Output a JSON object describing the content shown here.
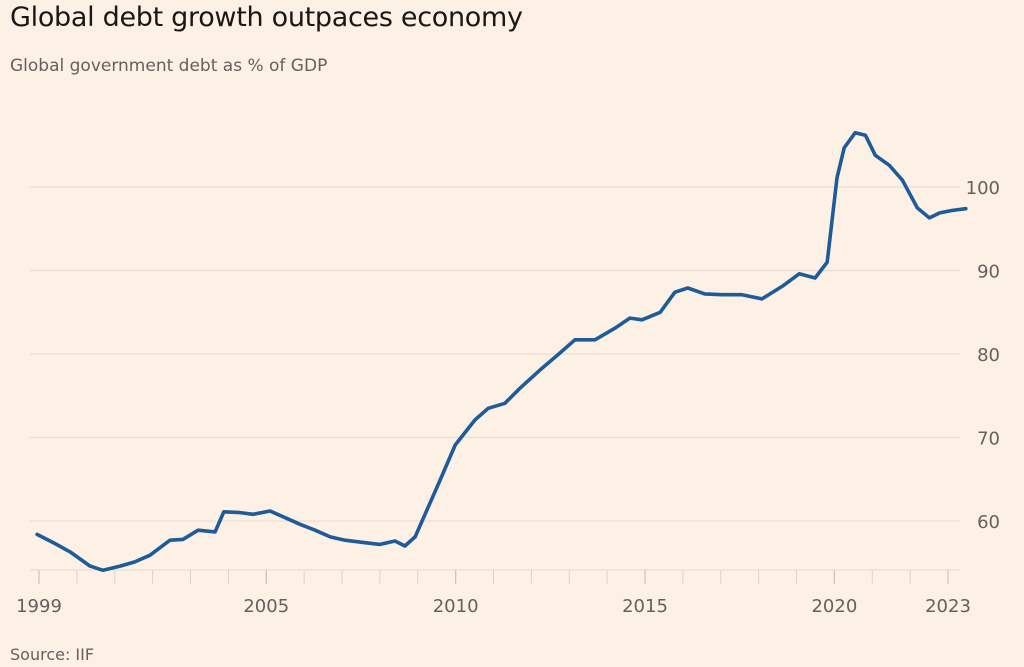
{
  "title": "Global debt growth outpaces economy",
  "subtitle": "Global government debt as % of GDP",
  "source": "Source: IIF",
  "colors": {
    "line": "#1f5b99",
    "grid": "#e9ded3",
    "background": "#fdf1e6",
    "text": "#66605c"
  },
  "chart_data": {
    "type": "line",
    "title": "Global debt growth outpaces economy",
    "subtitle": "Global government debt as % of GDP",
    "xlabel": "",
    "ylabel": "",
    "xlim": [
      1999,
      2023
    ],
    "ylim": [
      54.4,
      107
    ],
    "grid": true,
    "y_axis_side": "right",
    "yticks": [
      60,
      70,
      80,
      90,
      100
    ],
    "ytick_labels": [
      "60",
      "70",
      "80",
      "90",
      "100"
    ],
    "xticks": [
      1999,
      2005,
      2010,
      2015,
      2020,
      2023
    ],
    "xtick_labels": [
      "1999",
      "2005",
      "2010",
      "2015",
      "2020",
      "2023"
    ],
    "minor_xticks": [
      1999,
      2000,
      2001,
      2002,
      2003,
      2004,
      2005,
      2006,
      2007,
      2008,
      2009,
      2010,
      2011,
      2012,
      2013,
      2014,
      2015,
      2016,
      2017,
      2018,
      2019,
      2020,
      2021,
      2022,
      2023
    ],
    "series": [
      {
        "name": "Global government debt as % of GDP",
        "x": [
          1998.95,
          1999.42,
          1999.82,
          2000.35,
          2000.69,
          2001.14,
          2001.53,
          2001.93,
          2002.46,
          2002.8,
          2003.2,
          2003.65,
          2003.88,
          2004.31,
          2004.65,
          2005.1,
          2005.5,
          2005.89,
          2006.29,
          2006.69,
          2007.08,
          2007.61,
          2008.0,
          2008.4,
          2008.66,
          2008.93,
          2009.59,
          2009.99,
          2010.51,
          2010.86,
          2011.3,
          2011.7,
          2012.23,
          2012.7,
          2013.15,
          2013.68,
          2014.21,
          2014.6,
          2014.92,
          2015.4,
          2015.79,
          2016.13,
          2016.58,
          2017.04,
          2017.56,
          2018.09,
          2018.62,
          2019.07,
          2019.49,
          2019.81,
          2020.07,
          2020.26,
          2020.55,
          2020.82,
          2021.08,
          2021.45,
          2021.8,
          2022.19,
          2022.51,
          2022.78,
          2023.12,
          2023.47
        ],
        "values": [
          58.4,
          57.3,
          56.3,
          54.6,
          54.1,
          54.6,
          55.1,
          55.9,
          57.7,
          57.8,
          58.9,
          58.7,
          61.1,
          61.0,
          60.8,
          61.2,
          60.4,
          59.6,
          58.9,
          58.1,
          57.7,
          57.4,
          57.2,
          57.6,
          57.0,
          58.1,
          64.9,
          69.1,
          72.1,
          73.5,
          74.1,
          75.9,
          78.1,
          79.9,
          81.7,
          81.7,
          83.1,
          84.3,
          84.1,
          85.0,
          87.4,
          87.9,
          87.2,
          87.1,
          87.1,
          86.6,
          88.1,
          89.6,
          89.1,
          91.0,
          101.1,
          104.7,
          106.5,
          106.2,
          103.8,
          102.6,
          100.8,
          97.5,
          96.3,
          96.9,
          97.2,
          97.4
        ]
      }
    ]
  }
}
